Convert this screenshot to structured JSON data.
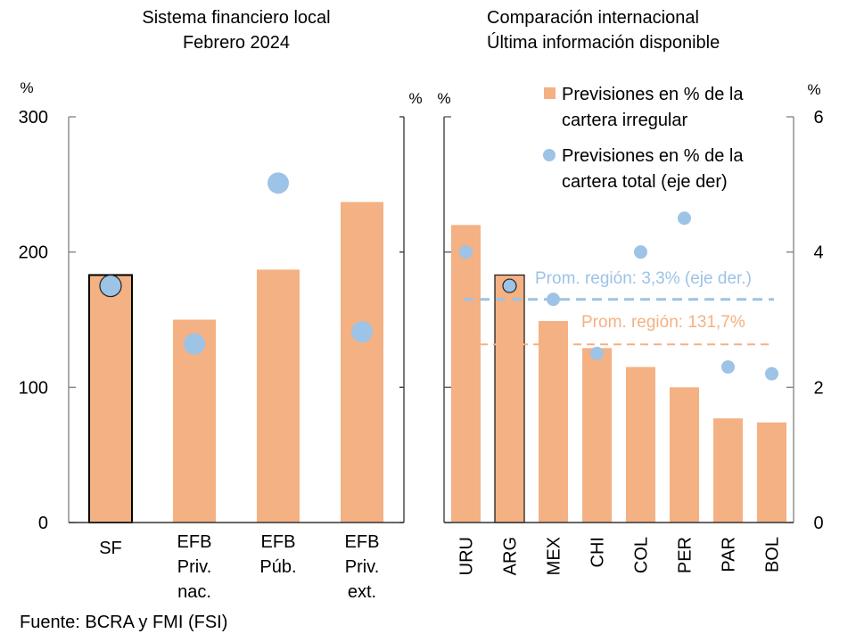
{
  "colors": {
    "bar": "#F4B183",
    "dot": "#9DC3E6",
    "axis": "#7f7f7f",
    "outline": "#000000"
  },
  "chart_data": [
    {
      "type": "bar",
      "title": "Sistema financiero local",
      "subtitle": "Febrero 2024",
      "ylabel_left": "%",
      "ylabel_right": "%",
      "ylim": [
        0,
        300
      ],
      "yticks": [
        "0",
        "100",
        "200",
        "300"
      ],
      "ytick_values": [
        0,
        100,
        200,
        300
      ],
      "categories": [
        "SF",
        "EFB Priv. nac.",
        "EFB Púb.",
        "EFB Priv. ext."
      ],
      "category_lines": [
        [
          "SF"
        ],
        [
          "EFB",
          "Priv.",
          "nac."
        ],
        [
          "EFB",
          "Púb."
        ],
        [
          "EFB",
          "Priv.",
          "ext."
        ]
      ],
      "highlight": "SF",
      "series": [
        {
          "name": "Previsiones en % de la cartera irregular",
          "kind": "bar",
          "axis": "left",
          "values": [
            183,
            150,
            187,
            237
          ]
        },
        {
          "name": "Previsiones en % de la cartera total (eje der)",
          "kind": "scatter",
          "axis": "left",
          "values": [
            175,
            132,
            251,
            141
          ]
        }
      ]
    },
    {
      "type": "bar",
      "title": "Comparación internacional",
      "subtitle": "Última información disponible",
      "ylabel_left": "%",
      "ylabel_right": "%",
      "ylim_left": [
        0,
        300
      ],
      "ylim_right": [
        0,
        6
      ],
      "yticks_right": [
        "0",
        "2",
        "4",
        "6"
      ],
      "ytick_values_right": [
        0,
        2,
        4,
        6
      ],
      "ytick_values_left": [
        0,
        100,
        200,
        300
      ],
      "categories": [
        "URU",
        "ARG",
        "MEX",
        "CHI",
        "COL",
        "PER",
        "PAR",
        "BOL"
      ],
      "highlight": "ARG",
      "series": [
        {
          "name": "Previsiones en % de la cartera irregular",
          "kind": "bar",
          "axis": "left",
          "values": [
            220,
            183,
            149,
            129,
            115,
            100,
            77,
            74
          ]
        },
        {
          "name": "Previsiones en % de la cartera total (eje der)",
          "kind": "scatter",
          "axis": "right",
          "values": [
            4.0,
            3.5,
            3.3,
            2.5,
            4.0,
            4.5,
            2.3,
            2.2
          ]
        }
      ],
      "reference_lines": [
        {
          "label": "Prom. región: 3,3% (eje der.)",
          "axis": "right",
          "value": 3.3,
          "color": "#9DC3E6"
        },
        {
          "label": "Prom. región: 131,7%",
          "axis": "left",
          "value": 131.7,
          "color": "#F4B183"
        }
      ],
      "legend": {
        "placement": "top-right",
        "items": [
          {
            "marker": "square",
            "lines": [
              "Previsiones en % de la",
              "cartera irregular"
            ]
          },
          {
            "marker": "circle",
            "lines": [
              "Previsiones en % de la",
              "cartera total (eje der)"
            ]
          }
        ]
      }
    }
  ],
  "footer": {
    "source": "Fuente: BCRA y FMI (FSI)"
  }
}
